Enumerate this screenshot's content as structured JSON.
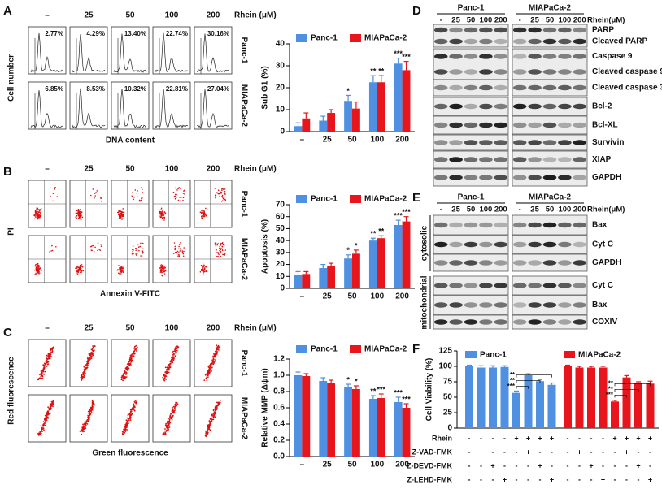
{
  "panels": {
    "A": {
      "letter": "A",
      "columns": [
        "–",
        "25",
        "50",
        "100",
        "200"
      ],
      "unit": "Rhein (μM)",
      "rows": [
        "Panc-1",
        "MIAPaCa-2"
      ],
      "y_label": "Cell number",
      "x_label": "DNA content",
      "percentages": [
        [
          "2.77%",
          "4.29%",
          "13.40%",
          "22.74%",
          "30.16%"
        ],
        [
          "6.85%",
          "8.53%",
          "10.32%",
          "22.81%",
          "27.04%"
        ]
      ]
    },
    "B": {
      "letter": "B",
      "columns": [
        "–",
        "25",
        "50",
        "100",
        "200"
      ],
      "unit": "Rhein (μM)",
      "rows": [
        "Panc-1",
        "MIAPaCa-2"
      ],
      "y_label": "PI",
      "x_label": "Annexin V-FITC"
    },
    "C": {
      "letter": "C",
      "columns": [
        "–",
        "25",
        "50",
        "100",
        "200"
      ],
      "unit": "Rhein (μM)",
      "rows": [
        "Panc-1",
        "MIAPaCa-2"
      ],
      "y_label": "Red fluorescence",
      "x_label": "Green fluorescence"
    }
  },
  "blots": {
    "D": {
      "letter": "D",
      "groups": [
        "Panc-1",
        "MIAPaCa-2"
      ],
      "lanes": [
        "-",
        "25",
        "50",
        "100",
        "200"
      ],
      "unit": "Rhein(μM)",
      "proteins": [
        "PARP",
        "Cleaved PARP",
        "Caspase 9",
        "Cleaved caspase 9",
        "Cleaved caspase 3",
        "Bcl-2",
        "Bcl-XL",
        "Survivin",
        "XIAP",
        "GAPDH"
      ]
    },
    "E": {
      "letter": "E",
      "groups": [
        "Panc-1",
        "MIAPaCa-2"
      ],
      "lanes": [
        "-",
        "25",
        "50",
        "100",
        "200"
      ],
      "unit": "Rhein(μM)",
      "proteins": [
        "Bax",
        "Cyt C",
        "GAPDH",
        "Cyt C",
        "Bax",
        "COXIV"
      ],
      "sections": [
        "cytosolic",
        "mitochondrial"
      ]
    }
  },
  "chart_data": [
    {
      "type": "bar",
      "y_label": "Sub G1 (%)",
      "categories": [
        "–",
        "25",
        "50",
        "100",
        "200"
      ],
      "ylim": [
        0,
        40
      ],
      "yticks": [
        0,
        10,
        20,
        30,
        40
      ],
      "series": [
        {
          "name": "Panc-1",
          "color": "#4f90e2",
          "values": [
            2.5,
            5,
            14,
            22.5,
            31
          ],
          "errors": [
            1.5,
            2,
            2.5,
            3,
            2.5
          ],
          "annotations": [
            null,
            null,
            "*",
            "**",
            "***"
          ]
        },
        {
          "name": "MIAPaCa-2",
          "color": "#e8151d",
          "values": [
            6,
            8.5,
            10.5,
            22.5,
            28
          ],
          "errors": [
            2.5,
            1.5,
            3,
            3,
            4
          ],
          "annotations": [
            null,
            null,
            null,
            "**",
            "***"
          ]
        }
      ]
    },
    {
      "type": "bar",
      "y_label": "Apoptosis (%)",
      "categories": [
        "–",
        "25",
        "50",
        "100",
        "200"
      ],
      "ylim": [
        0,
        70
      ],
      "yticks": [
        0,
        10,
        20,
        30,
        40,
        50,
        60,
        70
      ],
      "series": [
        {
          "name": "Panc-1",
          "color": "#4f90e2",
          "values": [
            11,
            17,
            25,
            40,
            53
          ],
          "errors": [
            3,
            3,
            3,
            2,
            4
          ],
          "annotations": [
            null,
            null,
            "*",
            "**",
            "***"
          ]
        },
        {
          "name": "MIAPaCa-2",
          "color": "#e8151d",
          "values": [
            12,
            19,
            29,
            42,
            56
          ],
          "errors": [
            2,
            2,
            3,
            2,
            4
          ],
          "annotations": [
            null,
            null,
            "*",
            "**",
            "***"
          ]
        }
      ]
    },
    {
      "type": "bar",
      "y_label": "Relative MMP (Δψm)",
      "categories": [
        "–",
        "25",
        "50",
        "100",
        "200"
      ],
      "ylim": [
        0,
        1.2
      ],
      "yticks": [
        {
          "value": 0,
          "label": "0.0"
        },
        0.2,
        0.4,
        0.6,
        0.8,
        {
          "value": 1,
          "label": "1.0"
        },
        1.2
      ],
      "series": [
        {
          "name": "Panc-1",
          "color": "#4f90e2",
          "values": [
            1,
            0.93,
            0.85,
            0.71,
            0.67
          ],
          "errors": [
            0.04,
            0.04,
            0.04,
            0.04,
            0.06
          ],
          "annotations": [
            null,
            null,
            "*",
            "**",
            "***"
          ]
        },
        {
          "name": "MIAPaCa-2",
          "color": "#e8151d",
          "values": [
            0.99,
            0.91,
            0.83,
            0.72,
            0.6
          ],
          "errors": [
            0.03,
            0.03,
            0.04,
            0.05,
            0.05
          ],
          "annotations": [
            null,
            null,
            "*",
            "***",
            "***"
          ]
        }
      ]
    },
    {
      "type": "grouped-blocks",
      "letter": "F",
      "y_label": "Cell Viability (%)",
      "ylim": [
        0,
        125
      ],
      "yticks": [
        0,
        25,
        50,
        75,
        100,
        125
      ],
      "series": [
        {
          "name": "Panc-1",
          "color": "#4f90e2",
          "values": [
            100,
            98,
            98,
            99,
            57,
            86,
            76,
            70
          ],
          "errors": [
            2,
            3,
            3,
            2,
            3,
            2,
            2,
            3
          ],
          "brackets": [
            "***",
            "**",
            "**"
          ]
        },
        {
          "name": "MIAPaCa-2",
          "color": "#e8151d",
          "values": [
            100,
            98,
            98,
            98,
            43,
            82,
            72,
            72
          ],
          "errors": [
            2,
            2,
            2,
            2,
            2,
            3,
            3,
            4
          ],
          "brackets": [
            "***",
            "**",
            "**"
          ]
        }
      ],
      "treatments": [
        {
          "label": "Rhein",
          "signs": [
            "-",
            "-",
            "-",
            "-",
            "+",
            "+",
            "+",
            "+",
            "-",
            "-",
            "-",
            "-",
            "+",
            "+",
            "+",
            "+"
          ]
        },
        {
          "label": "Z-VAD-FMK",
          "signs": [
            "-",
            "+",
            "-",
            "-",
            "-",
            "+",
            "-",
            "-",
            "-",
            "+",
            "-",
            "-",
            "-",
            "+",
            "-",
            "-"
          ]
        },
        {
          "label": "Z-DEVD-FMK",
          "signs": [
            "-",
            "-",
            "+",
            "-",
            "-",
            "-",
            "+",
            "-",
            "-",
            "-",
            "+",
            "-",
            "-",
            "-",
            "+",
            "-"
          ]
        },
        {
          "label": "Z-LEHD-FMK",
          "signs": [
            "-",
            "-",
            "-",
            "+",
            "-",
            "-",
            "-",
            "+",
            "-",
            "-",
            "-",
            "+",
            "-",
            "-",
            "-",
            "+"
          ]
        }
      ]
    }
  ]
}
